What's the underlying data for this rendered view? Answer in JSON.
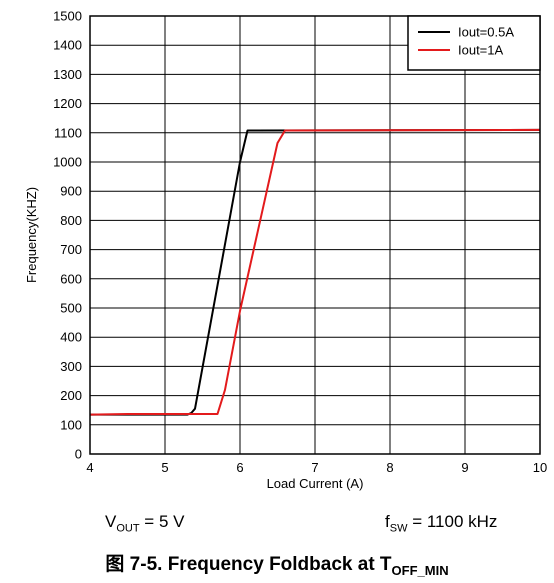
{
  "chart_data": {
    "type": "line",
    "xlabel": "Load Current (A)",
    "ylabel": "Frequency(KHZ)",
    "xlim": [
      4,
      10
    ],
    "ylim": [
      0,
      1500
    ],
    "xticks": [
      4,
      5,
      6,
      7,
      8,
      9,
      10
    ],
    "yticks": [
      0,
      100,
      200,
      300,
      400,
      500,
      600,
      700,
      800,
      900,
      1000,
      1100,
      1200,
      1300,
      1400,
      1500
    ],
    "grid": true,
    "legend_position": "top-right",
    "series": [
      {
        "name": "Iout=0.5A",
        "color": "#000000",
        "points": [
          [
            4,
            135
          ],
          [
            5,
            135
          ],
          [
            5.3,
            135
          ],
          [
            5.35,
            140
          ],
          [
            5.4,
            155
          ],
          [
            6.0,
            1000
          ],
          [
            6.1,
            1108
          ],
          [
            10,
            1110
          ]
        ]
      },
      {
        "name": "Iout=1A",
        "color": "#e31a1c",
        "points": [
          [
            4,
            135
          ],
          [
            4.5,
            137
          ],
          [
            5.7,
            137
          ],
          [
            5.8,
            220
          ],
          [
            6.0,
            490
          ],
          [
            6.5,
            1065
          ],
          [
            6.6,
            1108
          ],
          [
            10,
            1110
          ]
        ]
      }
    ]
  },
  "conditions": {
    "vout": {
      "symbol": "V",
      "sub": "OUT",
      "rest": " = 5 V"
    },
    "fsw": {
      "symbol": "f",
      "sub": "SW",
      "rest": " = 1100 kHz"
    }
  },
  "caption": {
    "prefix": "图 7-5. Frequency Foldback at T",
    "sub": "OFF_MIN"
  }
}
